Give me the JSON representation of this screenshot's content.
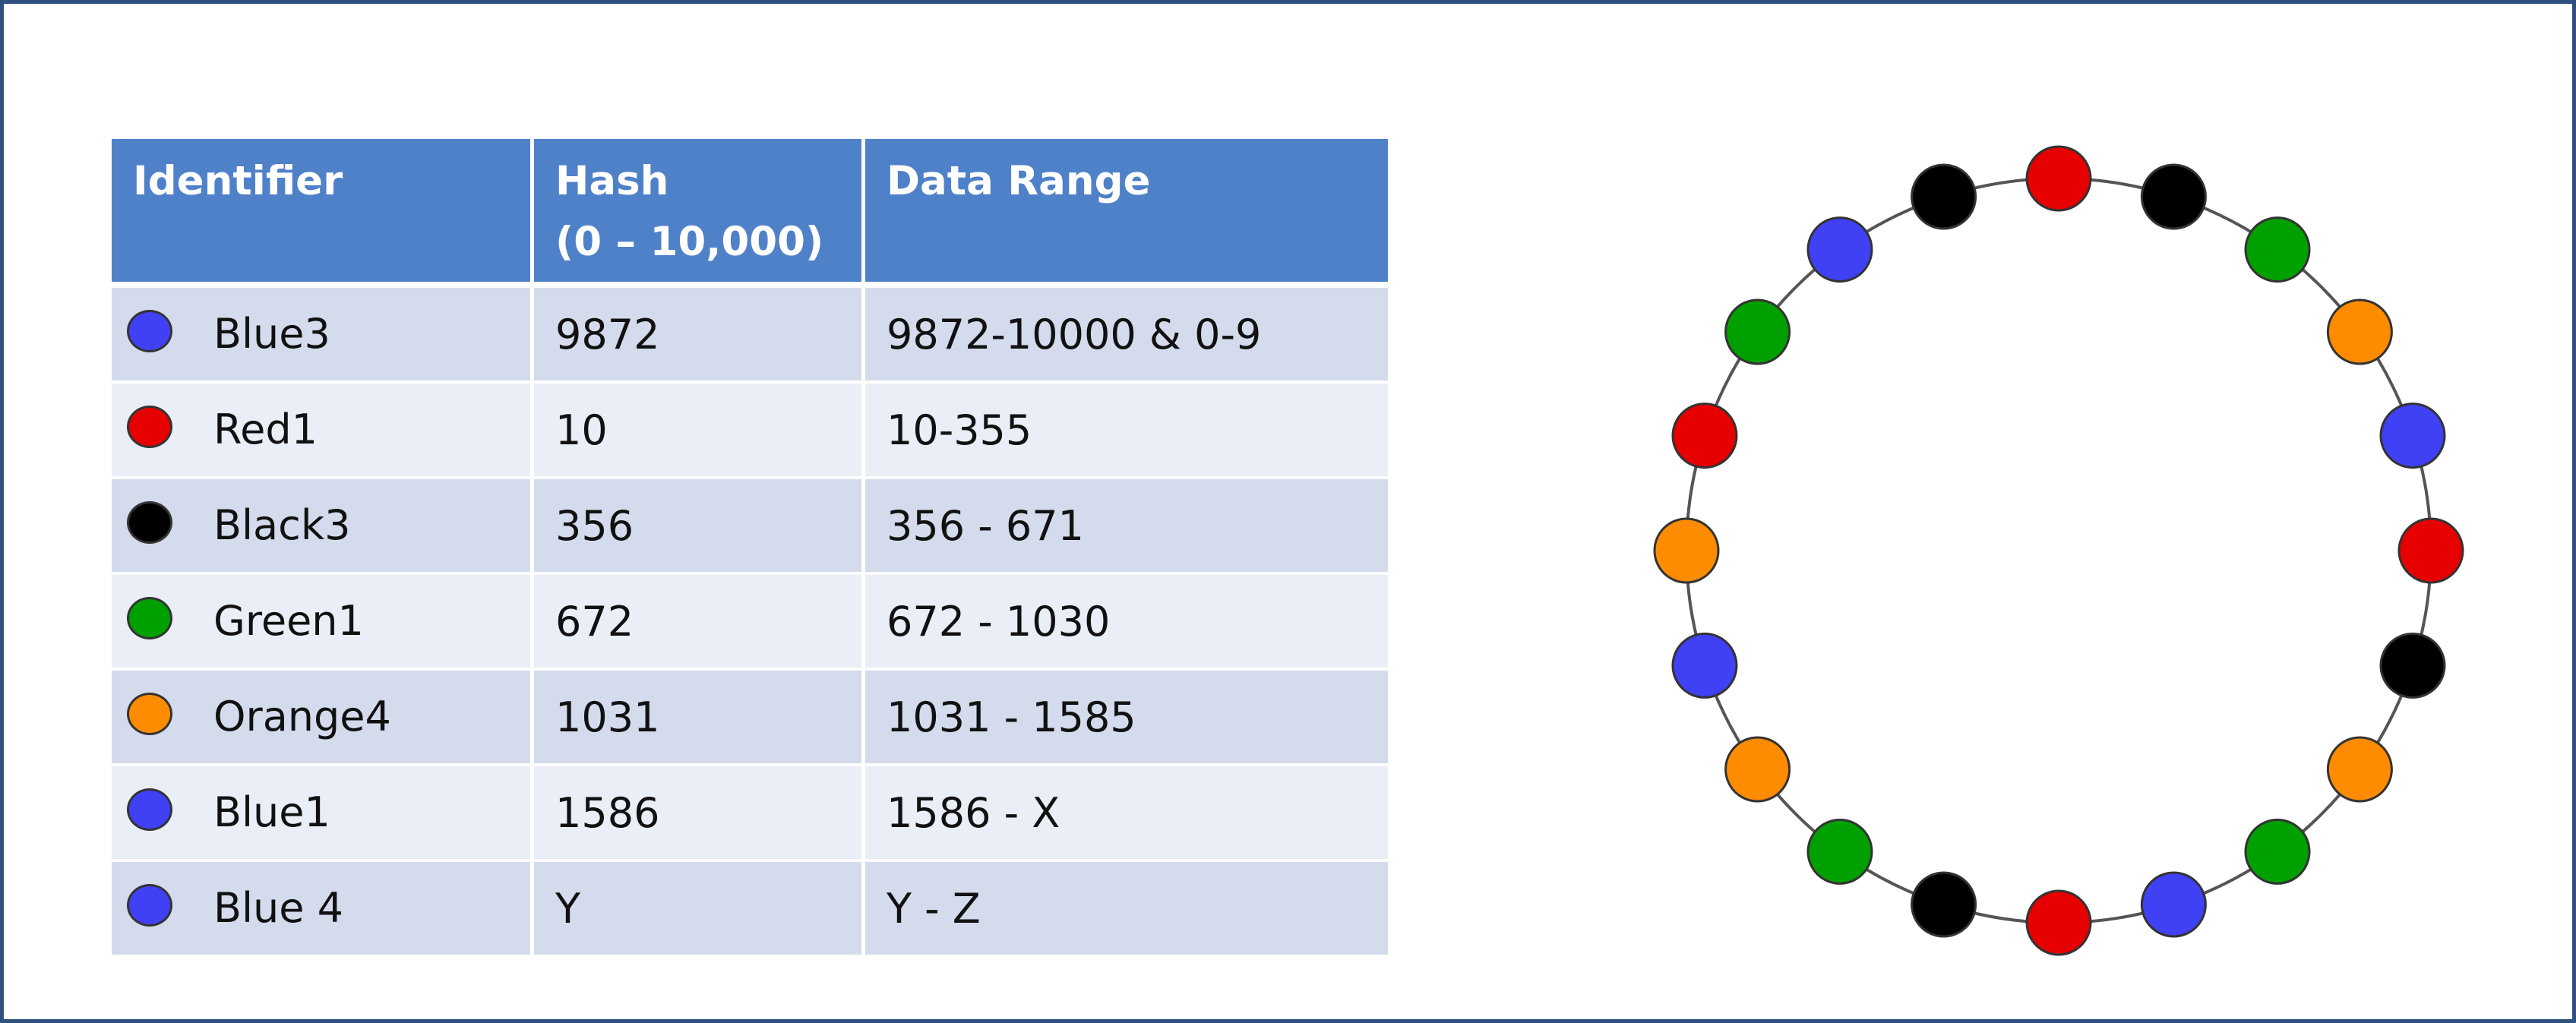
{
  "colors": {
    "blue": "#4040f5",
    "red": "#e60000",
    "black": "#000000",
    "green": "#00a000",
    "orange": "#ff8c00",
    "header": "#4f81c9"
  },
  "table": {
    "headers": {
      "identifier": "Identifier",
      "hash_line1": "Hash",
      "hash_line2": "(0 – 10,000)",
      "range": "Data Range"
    },
    "rows": [
      {
        "color": "blue",
        "identifier": "Blue3",
        "hash": "9872",
        "range": "9872-10000 & 0-9"
      },
      {
        "color": "red",
        "identifier": "Red1",
        "hash": "10",
        "range": "10-355"
      },
      {
        "color": "black",
        "identifier": "Black3",
        "hash": "356",
        "range": "356 - 671"
      },
      {
        "color": "green",
        "identifier": "Green1",
        "hash": "672",
        "range": "672 - 1030"
      },
      {
        "color": "orange",
        "identifier": "Orange4",
        "hash": "1031",
        "range": "1031 - 1585"
      },
      {
        "color": "blue",
        "identifier": "Blue1",
        "hash": "1586",
        "range": "1586 - X"
      },
      {
        "color": "blue",
        "identifier": "Blue 4",
        "hash": "Y",
        "range": "Y - Z"
      }
    ]
  },
  "ring": {
    "nodes_clockwise_from_top": [
      "red",
      "black",
      "green",
      "orange",
      "blue",
      "red",
      "black",
      "orange",
      "green",
      "blue",
      "red",
      "black",
      "green",
      "orange",
      "blue",
      "orange",
      "red",
      "green",
      "blue",
      "black"
    ]
  }
}
